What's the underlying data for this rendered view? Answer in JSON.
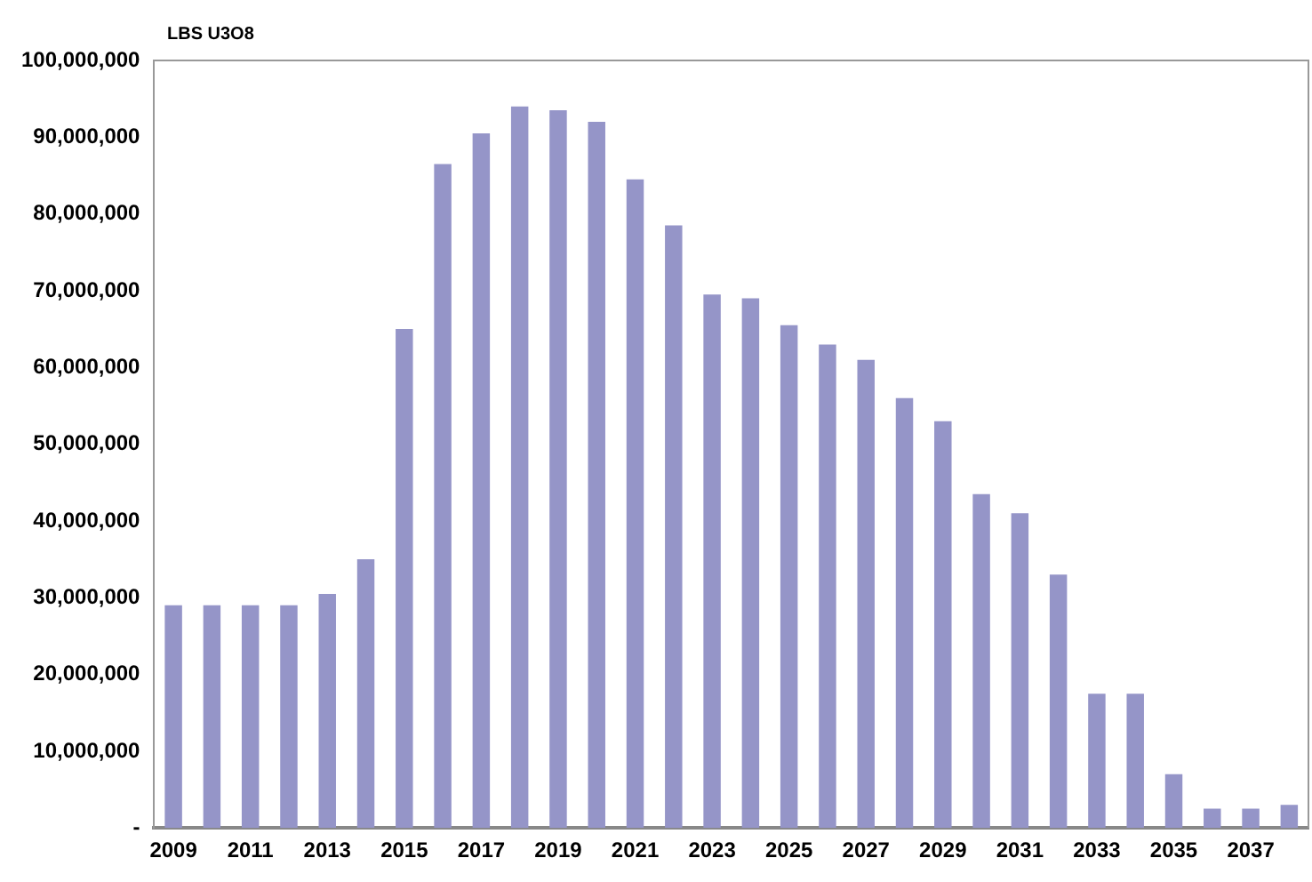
{
  "chart_data": {
    "type": "bar",
    "ylabel": "LBS U3O8",
    "categories": [
      "2009",
      null,
      "2011",
      null,
      "2013",
      null,
      "2015",
      null,
      "2017",
      null,
      "2019",
      null,
      "2021",
      null,
      "2023",
      null,
      "2025",
      null,
      "2027",
      null,
      "2029",
      null,
      "2031",
      null,
      "2033",
      null,
      "2035",
      null,
      "2037",
      null
    ],
    "values": [
      29000000,
      29000000,
      29000000,
      29000000,
      30500000,
      35000000,
      65000000,
      86500000,
      90500000,
      94000000,
      93500000,
      92000000,
      84500000,
      78500000,
      69500000,
      69000000,
      65500000,
      63000000,
      61000000,
      56000000,
      53000000,
      43500000,
      41000000,
      33000000,
      17500000,
      17500000,
      7000000,
      2500000,
      2500000,
      3000000
    ],
    "color": "#9595c8",
    "ylim": [
      0,
      100000000
    ],
    "yticks": [
      {
        "value": 0,
        "label": "-"
      },
      {
        "value": 10000000,
        "label": "10,000,000"
      },
      {
        "value": 20000000,
        "label": "20,000,000"
      },
      {
        "value": 30000000,
        "label": "30,000,000"
      },
      {
        "value": 40000000,
        "label": "40,000,000"
      },
      {
        "value": 50000000,
        "label": "50,000,000"
      },
      {
        "value": 60000000,
        "label": "60,000,000"
      },
      {
        "value": 70000000,
        "label": "70,000,000"
      },
      {
        "value": 80000000,
        "label": "80,000,000"
      },
      {
        "value": 90000000,
        "label": "90,000,000"
      },
      {
        "value": 100000000,
        "label": "100,000,000"
      }
    ],
    "grid": false,
    "legend": false
  }
}
